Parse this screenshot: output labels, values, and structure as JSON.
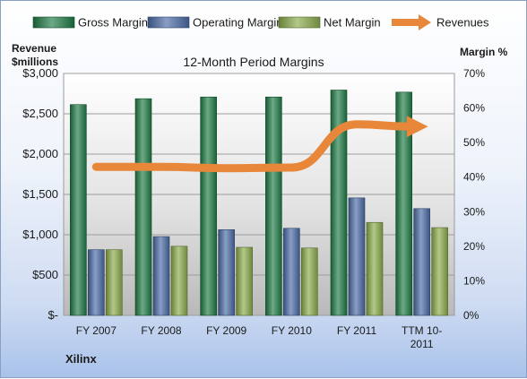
{
  "chart_data": {
    "type": "bar",
    "title": "12-Month Period Margins",
    "company": "Xilinx",
    "left_axis_label_line1": "Revenue",
    "left_axis_label_line2": "$millions",
    "right_axis_label": "Margin %",
    "categories": [
      [
        "FY 2007"
      ],
      [
        "FY 2008"
      ],
      [
        "FY 2009"
      ],
      [
        "FY 2010"
      ],
      [
        "FY 2011"
      ],
      [
        "TTM 10-",
        "2011"
      ]
    ],
    "left_ticks": [
      "$-",
      "$500",
      "$1,000",
      "$1,500",
      "$2,000",
      "$2,500",
      "$3,000"
    ],
    "right_ticks": [
      "0%",
      "10%",
      "20%",
      "30%",
      "40%",
      "50%",
      "60%",
      "70%"
    ],
    "ylim_left": [
      0,
      3000
    ],
    "ylim_right": [
      0,
      70
    ],
    "grid": true,
    "legend_position": "top",
    "series": [
      {
        "name": "Gross Margin",
        "kind": "bar",
        "axis": "right",
        "color": "#1e7a45",
        "values": [
          61,
          62.7,
          63.2,
          63.2,
          65.2,
          64.6
        ]
      },
      {
        "name": "Operating Margin",
        "kind": "bar",
        "axis": "right",
        "color": "#4a6aa5",
        "values": [
          19,
          22.8,
          24.8,
          25.2,
          34,
          30.9
        ]
      },
      {
        "name": "Net Margin",
        "kind": "bar",
        "axis": "right",
        "color": "#8aaa4a",
        "values": [
          19,
          20,
          19.7,
          19.5,
          26.9,
          25.4
        ]
      },
      {
        "name": "Revenues",
        "kind": "line",
        "axis": "left",
        "color": "#e8873a",
        "values": [
          1842,
          1841,
          1825,
          1834,
          2369,
          2342
        ]
      }
    ]
  }
}
